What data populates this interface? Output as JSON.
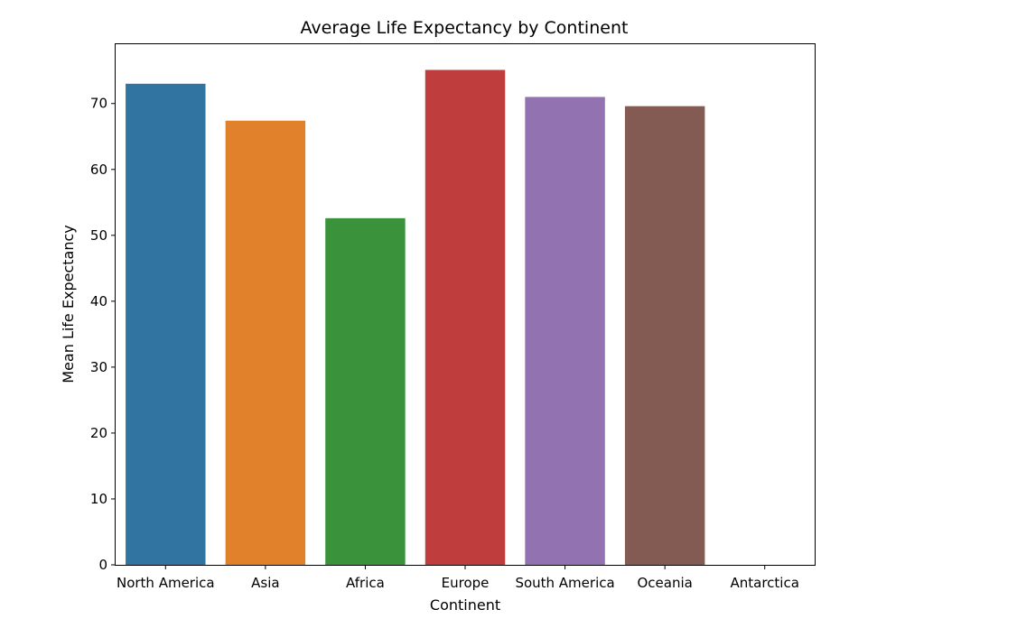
{
  "chart_data": {
    "type": "bar",
    "title": "Average Life Expectancy by Continent",
    "xlabel": "Continent",
    "ylabel": "Mean Life Expectancy",
    "categories": [
      "North America",
      "Asia",
      "Africa",
      "Europe",
      "South America",
      "Oceania",
      "Antarctica"
    ],
    "values": [
      73.0,
      67.4,
      52.6,
      75.1,
      71.0,
      69.6,
      null
    ],
    "colors": [
      "#3274a1",
      "#e1812c",
      "#3a923a",
      "#c03d3e",
      "#9372b2",
      "#845b53",
      "#d684bd"
    ],
    "ylim": [
      0,
      79
    ],
    "yticks": [
      0,
      10,
      20,
      30,
      40,
      50,
      60,
      70
    ],
    "grid": false,
    "legend": "none"
  }
}
